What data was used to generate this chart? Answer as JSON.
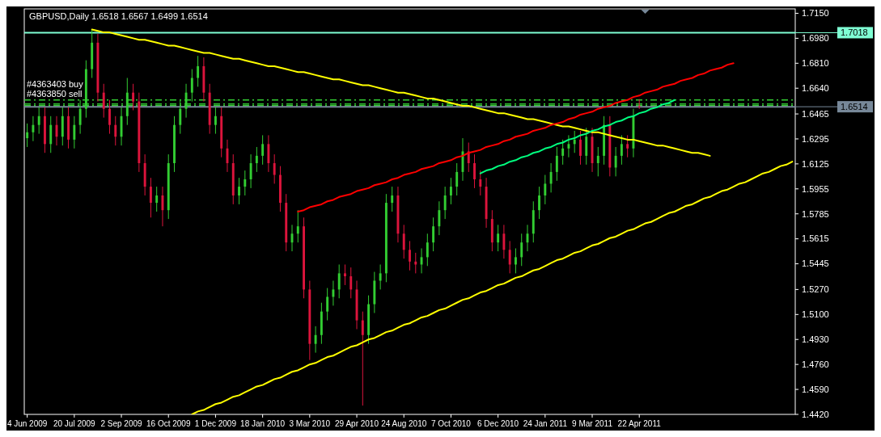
{
  "chart_data": {
    "type": "candlestick",
    "title": "GBPUSD,Daily  1.6518 1.6567 1.6499 1.6514",
    "categories": [
      "4 Jun 2009",
      null,
      null,
      null,
      null,
      null,
      null,
      null,
      "20 Jul 2009",
      null,
      null,
      null,
      null,
      null,
      null,
      null,
      "2 Sep 2009",
      null,
      null,
      null,
      null,
      null,
      null,
      null,
      "16 Oct 2009",
      null,
      null,
      null,
      null,
      null,
      null,
      null,
      "1 Dec 2009",
      null,
      null,
      null,
      null,
      null,
      null,
      null,
      "18 Jan 2010",
      null,
      null,
      null,
      null,
      null,
      null,
      null,
      "3 Mar 2010",
      null,
      null,
      null,
      null,
      null,
      null,
      null,
      "29 Apr 2010",
      null,
      null,
      null,
      null,
      null,
      null,
      null,
      "24 Aug 2010",
      null,
      null,
      null,
      null,
      null,
      null,
      null,
      "7 Oct 2010",
      null,
      null,
      null,
      null,
      null,
      null,
      null,
      "6 Dec 2010",
      null,
      null,
      null,
      null,
      null,
      null,
      null,
      "24 Jan 2011",
      null,
      null,
      null,
      null,
      null,
      null,
      null,
      "9 Mar 2011",
      null,
      null,
      null,
      null,
      null,
      null,
      null,
      "22 Apr 2011",
      null,
      null,
      null,
      null,
      null,
      null,
      null,
      null,
      null,
      null,
      null,
      null,
      null,
      null,
      null,
      null,
      null,
      null,
      null,
      null,
      null,
      null,
      null,
      null,
      null,
      null
    ],
    "ohlc": [
      [
        1.63,
        1.64,
        1.624,
        1.634
      ],
      [
        1.634,
        1.645,
        1.628,
        1.639
      ],
      [
        1.639,
        1.651,
        1.633,
        1.645
      ],
      [
        1.645,
        1.651,
        1.62,
        1.626
      ],
      [
        1.626,
        1.645,
        1.62,
        1.639
      ],
      [
        1.639,
        1.645,
        1.625,
        1.631
      ],
      [
        1.631,
        1.651,
        1.625,
        1.645
      ],
      [
        1.645,
        1.651,
        1.623,
        1.629
      ],
      [
        1.629,
        1.645,
        1.623,
        1.639
      ],
      [
        1.639,
        1.656,
        1.633,
        1.65
      ],
      [
        1.65,
        1.683,
        1.644,
        1.677
      ],
      [
        1.677,
        1.704,
        1.671,
        1.695
      ],
      [
        1.695,
        1.701,
        1.655,
        1.661
      ],
      [
        1.661,
        1.667,
        1.644,
        1.65
      ],
      [
        1.65,
        1.656,
        1.633,
        1.639
      ],
      [
        1.639,
        1.645,
        1.625,
        1.631
      ],
      [
        1.631,
        1.651,
        1.625,
        1.645
      ],
      [
        1.645,
        1.671,
        1.639,
        1.661
      ],
      [
        1.661,
        1.667,
        1.649,
        1.655
      ],
      [
        1.655,
        1.661,
        1.607,
        1.613
      ],
      [
        1.613,
        1.619,
        1.591,
        1.597
      ],
      [
        1.597,
        1.603,
        1.576,
        1.586
      ],
      [
        1.586,
        1.597,
        1.58,
        1.591
      ],
      [
        1.591,
        1.597,
        1.57,
        1.581
      ],
      [
        1.581,
        1.619,
        1.575,
        1.613
      ],
      [
        1.613,
        1.645,
        1.607,
        1.639
      ],
      [
        1.639,
        1.656,
        1.633,
        1.65
      ],
      [
        1.65,
        1.667,
        1.644,
        1.661
      ],
      [
        1.661,
        1.677,
        1.655,
        1.671
      ],
      [
        1.671,
        1.686,
        1.665,
        1.679
      ],
      [
        1.679,
        1.685,
        1.655,
        1.661
      ],
      [
        1.661,
        1.667,
        1.633,
        1.639
      ],
      [
        1.639,
        1.651,
        1.633,
        1.645
      ],
      [
        1.645,
        1.651,
        1.617,
        1.623
      ],
      [
        1.623,
        1.629,
        1.607,
        1.613
      ],
      [
        1.613,
        1.619,
        1.585,
        1.591
      ],
      [
        1.591,
        1.603,
        1.585,
        1.597
      ],
      [
        1.597,
        1.608,
        1.591,
        1.602
      ],
      [
        1.602,
        1.619,
        1.596,
        1.613
      ],
      [
        1.613,
        1.624,
        1.607,
        1.618
      ],
      [
        1.618,
        1.632,
        1.612,
        1.626
      ],
      [
        1.626,
        1.632,
        1.607,
        1.613
      ],
      [
        1.613,
        1.619,
        1.599,
        1.605
      ],
      [
        1.605,
        1.611,
        1.58,
        1.586
      ],
      [
        1.586,
        1.592,
        1.553,
        1.559
      ],
      [
        1.559,
        1.571,
        1.553,
        1.565
      ],
      [
        1.565,
        1.581,
        1.559,
        1.57
      ],
      [
        1.57,
        1.576,
        1.521,
        1.527
      ],
      [
        1.527,
        1.533,
        1.479,
        1.49
      ],
      [
        1.49,
        1.502,
        1.484,
        1.496
      ],
      [
        1.496,
        1.518,
        1.49,
        1.512
      ],
      [
        1.512,
        1.528,
        1.506,
        1.522
      ],
      [
        1.522,
        1.533,
        1.516,
        1.527
      ],
      [
        1.527,
        1.544,
        1.521,
        1.538
      ],
      [
        1.538,
        1.544,
        1.53,
        1.536
      ],
      [
        1.536,
        1.542,
        1.521,
        1.527
      ],
      [
        1.527,
        1.533,
        1.5,
        1.506
      ],
      [
        1.506,
        1.512,
        1.448,
        1.496
      ],
      [
        1.496,
        1.523,
        1.49,
        1.517
      ],
      [
        1.517,
        1.539,
        1.511,
        1.533
      ],
      [
        1.533,
        1.544,
        1.527,
        1.538
      ],
      [
        1.538,
        1.592,
        1.532,
        1.586
      ],
      [
        1.586,
        1.597,
        1.58,
        1.591
      ],
      [
        1.591,
        1.597,
        1.559,
        1.565
      ],
      [
        1.565,
        1.571,
        1.548,
        1.554
      ],
      [
        1.554,
        1.56,
        1.54,
        1.546
      ],
      [
        1.546,
        1.552,
        1.538,
        1.544
      ],
      [
        1.544,
        1.555,
        1.538,
        1.549
      ],
      [
        1.549,
        1.565,
        1.543,
        1.559
      ],
      [
        1.559,
        1.576,
        1.553,
        1.57
      ],
      [
        1.57,
        1.587,
        1.564,
        1.581
      ],
      [
        1.581,
        1.597,
        1.575,
        1.591
      ],
      [
        1.591,
        1.603,
        1.585,
        1.597
      ],
      [
        1.597,
        1.613,
        1.591,
        1.607
      ],
      [
        1.607,
        1.63,
        1.601,
        1.621
      ],
      [
        1.621,
        1.627,
        1.607,
        1.613
      ],
      [
        1.613,
        1.619,
        1.596,
        1.602
      ],
      [
        1.602,
        1.608,
        1.591,
        1.597
      ],
      [
        1.597,
        1.603,
        1.569,
        1.575
      ],
      [
        1.575,
        1.581,
        1.553,
        1.559
      ],
      [
        1.559,
        1.571,
        1.553,
        1.565
      ],
      [
        1.565,
        1.571,
        1.548,
        1.554
      ],
      [
        1.554,
        1.56,
        1.538,
        1.544
      ],
      [
        1.544,
        1.555,
        1.538,
        1.549
      ],
      [
        1.549,
        1.565,
        1.543,
        1.559
      ],
      [
        1.559,
        1.571,
        1.553,
        1.565
      ],
      [
        1.565,
        1.587,
        1.559,
        1.581
      ],
      [
        1.581,
        1.597,
        1.575,
        1.591
      ],
      [
        1.591,
        1.605,
        1.585,
        1.599
      ],
      [
        1.599,
        1.613,
        1.593,
        1.607
      ],
      [
        1.607,
        1.624,
        1.601,
        1.618
      ],
      [
        1.618,
        1.629,
        1.612,
        1.623
      ],
      [
        1.623,
        1.632,
        1.617,
        1.626
      ],
      [
        1.626,
        1.635,
        1.62,
        1.629
      ],
      [
        1.629,
        1.635,
        1.612,
        1.618
      ],
      [
        1.618,
        1.637,
        1.612,
        1.631
      ],
      [
        1.631,
        1.637,
        1.607,
        1.613
      ],
      [
        1.613,
        1.624,
        1.604,
        1.618
      ],
      [
        1.618,
        1.645,
        1.612,
        1.639
      ],
      [
        1.639,
        1.645,
        1.604,
        1.61
      ],
      [
        1.61,
        1.624,
        1.604,
        1.618
      ],
      [
        1.618,
        1.632,
        1.612,
        1.626
      ],
      [
        1.626,
        1.632,
        1.617,
        1.623
      ],
      [
        1.623,
        1.65,
        1.617,
        1.645
      ],
      [
        1.6518,
        1.6567,
        1.6499,
        1.6514
      ],
      null,
      null,
      null,
      null,
      null,
      null,
      null,
      null,
      null,
      null,
      null,
      null,
      null,
      null,
      null,
      null,
      null,
      null,
      null,
      null,
      null,
      null,
      null,
      null,
      null,
      null
    ],
    "colors": [
      "#32cd32",
      "#32cd32",
      "#32cd32",
      "#dc143c",
      "#32cd32",
      "#dc143c",
      "#32cd32",
      "#dc143c",
      "#32cd32",
      "#32cd32",
      "#32cd32",
      "#32cd32",
      "#dc143c",
      "#dc143c",
      "#dc143c",
      "#dc143c",
      "#32cd32",
      "#32cd32",
      "#dc143c",
      "#dc143c",
      "#dc143c",
      "#dc143c",
      "#32cd32",
      "#dc143c",
      "#32cd32",
      "#32cd32",
      "#32cd32",
      "#32cd32",
      "#32cd32",
      "#32cd32",
      "#dc143c",
      "#dc143c",
      "#32cd32",
      "#dc143c",
      "#dc143c",
      "#dc143c",
      "#32cd32",
      "#32cd32",
      "#32cd32",
      "#32cd32",
      "#32cd32",
      "#dc143c",
      "#dc143c",
      "#dc143c",
      "#dc143c",
      "#32cd32",
      "#32cd32",
      "#dc143c",
      "#dc143c",
      "#32cd32",
      "#32cd32",
      "#32cd32",
      "#32cd32",
      "#32cd32",
      "#dc143c",
      "#dc143c",
      "#dc143c",
      "#dc143c",
      "#32cd32",
      "#32cd32",
      "#32cd32",
      "#32cd32",
      "#32cd32",
      "#dc143c",
      "#dc143c",
      "#dc143c",
      "#dc143c",
      "#32cd32",
      "#32cd32",
      "#32cd32",
      "#32cd32",
      "#32cd32",
      "#32cd32",
      "#32cd32",
      "#32cd32",
      "#dc143c",
      "#dc143c",
      "#dc143c",
      "#dc143c",
      "#dc143c",
      "#32cd32",
      "#dc143c",
      "#dc143c",
      "#32cd32",
      "#32cd32",
      "#32cd32",
      "#32cd32",
      "#32cd32",
      "#32cd32",
      "#32cd32",
      "#32cd32",
      "#32cd32",
      "#32cd32",
      "#32cd32",
      "#dc143c",
      "#32cd32",
      "#dc143c",
      "#32cd32",
      "#32cd32",
      "#dc143c",
      "#32cd32",
      "#32cd32",
      "#dc143c",
      "#32cd32",
      "#dc143c",
      null,
      null,
      null,
      null,
      null,
      null,
      null,
      null,
      null,
      null,
      null,
      null,
      null,
      null,
      null,
      null,
      null,
      null,
      null,
      null,
      null,
      null,
      null,
      null,
      null,
      null
    ],
    "series": [
      {
        "type": "line",
        "color": "#ffff00",
        "values": [
          null,
          null,
          null,
          null,
          null,
          null,
          null,
          null,
          null,
          null,
          null,
          1.704,
          1.703,
          1.702,
          1.702,
          1.701,
          1.7,
          1.699,
          1.698,
          1.697,
          1.697,
          1.696,
          1.695,
          1.694,
          1.693,
          1.693,
          1.692,
          1.691,
          1.69,
          1.689,
          1.688,
          1.688,
          1.687,
          1.686,
          1.685,
          1.684,
          1.684,
          1.683,
          1.682,
          1.681,
          1.68,
          1.679,
          1.679,
          1.678,
          1.677,
          1.676,
          1.675,
          1.675,
          1.674,
          1.673,
          1.672,
          1.671,
          1.67,
          1.67,
          1.669,
          1.668,
          1.667,
          1.666,
          1.666,
          1.665,
          1.664,
          1.663,
          1.662,
          1.661,
          1.661,
          1.66,
          1.659,
          1.658,
          1.657,
          1.657,
          1.656,
          1.655,
          1.654,
          1.653,
          1.652,
          1.652,
          1.651,
          1.65,
          1.649,
          1.648,
          1.647,
          1.647,
          1.646,
          1.645,
          1.644,
          1.643,
          1.643,
          1.642,
          1.641,
          1.64,
          1.639,
          1.638,
          1.638,
          1.637,
          1.636,
          1.635,
          1.634,
          1.634,
          1.633,
          1.632,
          1.631,
          1.63,
          1.629,
          1.629,
          1.628,
          1.627,
          1.626,
          1.625,
          1.625,
          1.624,
          1.623,
          1.622,
          1.621,
          1.62,
          1.62,
          1.619,
          1.618,
          null,
          null,
          null,
          null,
          null,
          null,
          null,
          null,
          null,
          null,
          null,
          null,
          null,
          null
        ]
      },
      {
        "type": "line",
        "color": "#ff0000",
        "values": [
          null,
          null,
          null,
          null,
          null,
          null,
          null,
          null,
          null,
          null,
          null,
          null,
          null,
          null,
          null,
          null,
          null,
          null,
          null,
          null,
          null,
          null,
          null,
          null,
          null,
          null,
          null,
          null,
          null,
          null,
          null,
          null,
          null,
          null,
          null,
          null,
          null,
          null,
          null,
          null,
          null,
          null,
          null,
          null,
          null,
          null,
          1.58,
          1.581,
          1.583,
          1.584,
          1.585,
          1.587,
          1.588,
          1.59,
          1.591,
          1.592,
          1.594,
          1.595,
          1.596,
          1.598,
          1.599,
          1.6,
          1.602,
          1.603,
          1.605,
          1.606,
          1.607,
          1.609,
          1.61,
          1.611,
          1.613,
          1.614,
          1.615,
          1.617,
          1.618,
          1.62,
          1.621,
          1.622,
          1.624,
          1.625,
          1.626,
          1.628,
          1.629,
          1.631,
          1.632,
          1.633,
          1.635,
          1.636,
          1.637,
          1.639,
          1.64,
          1.641,
          1.643,
          1.644,
          1.646,
          1.647,
          1.648,
          1.65,
          1.651,
          1.652,
          1.654,
          1.655,
          1.656,
          1.658,
          1.659,
          1.661,
          1.662,
          1.663,
          1.665,
          1.666,
          1.667,
          1.669,
          1.67,
          1.671,
          1.673,
          1.674,
          1.676,
          1.677,
          1.678,
          1.68,
          1.681,
          null,
          null,
          null,
          null,
          null,
          null,
          null,
          null,
          null,
          null
        ]
      },
      {
        "type": "line",
        "color": "#00ff7f",
        "values": [
          null,
          null,
          null,
          null,
          null,
          null,
          null,
          null,
          null,
          null,
          null,
          null,
          null,
          null,
          null,
          null,
          null,
          null,
          null,
          null,
          null,
          null,
          null,
          null,
          null,
          null,
          null,
          null,
          null,
          null,
          null,
          null,
          null,
          null,
          null,
          null,
          null,
          null,
          null,
          null,
          null,
          null,
          null,
          null,
          null,
          null,
          null,
          null,
          null,
          null,
          null,
          null,
          null,
          null,
          null,
          null,
          null,
          null,
          null,
          null,
          null,
          null,
          null,
          null,
          null,
          null,
          null,
          null,
          null,
          null,
          null,
          null,
          null,
          null,
          null,
          null,
          null,
          1.606,
          1.608,
          1.609,
          1.611,
          1.612,
          1.614,
          1.615,
          1.617,
          1.618,
          1.62,
          1.621,
          1.623,
          1.624,
          1.626,
          1.627,
          1.629,
          1.63,
          1.632,
          1.633,
          1.635,
          1.636,
          1.638,
          1.639,
          1.641,
          1.642,
          1.644,
          1.645,
          1.647,
          1.648,
          1.65,
          1.651,
          1.653,
          1.654,
          1.656,
          null,
          null,
          null,
          null,
          null,
          null,
          null,
          null,
          null,
          null,
          null,
          null,
          null,
          null,
          null,
          null,
          null,
          null,
          null,
          null
        ]
      },
      {
        "type": "line",
        "color": "#ffff00",
        "values": [
          null,
          null,
          null,
          null,
          null,
          null,
          null,
          null,
          null,
          null,
          null,
          null,
          null,
          null,
          null,
          null,
          null,
          null,
          null,
          null,
          null,
          null,
          null,
          null,
          null,
          null,
          null,
          null,
          1.442,
          1.444,
          1.445,
          1.447,
          1.449,
          1.45,
          1.452,
          1.454,
          1.455,
          1.457,
          1.459,
          1.461,
          1.462,
          1.464,
          1.466,
          1.467,
          1.469,
          1.471,
          1.472,
          1.474,
          1.476,
          1.477,
          1.479,
          1.481,
          1.482,
          1.484,
          1.486,
          1.488,
          1.489,
          1.491,
          1.493,
          1.494,
          1.496,
          1.498,
          1.499,
          1.501,
          1.503,
          1.504,
          1.506,
          1.508,
          1.509,
          1.511,
          1.513,
          1.514,
          1.516,
          1.518,
          1.52,
          1.521,
          1.523,
          1.525,
          1.526,
          1.528,
          1.53,
          1.531,
          1.533,
          1.535,
          1.536,
          1.538,
          1.54,
          1.541,
          1.543,
          1.545,
          1.547,
          1.548,
          1.55,
          1.552,
          1.553,
          1.555,
          1.557,
          1.558,
          1.56,
          1.562,
          1.563,
          1.565,
          1.567,
          1.568,
          1.57,
          1.572,
          1.573,
          1.575,
          1.577,
          1.579,
          1.58,
          1.582,
          1.584,
          1.585,
          1.587,
          1.589,
          1.59,
          1.592,
          1.594,
          1.595,
          1.597,
          1.599,
          1.6,
          1.602,
          1.604,
          1.606,
          1.607,
          1.609,
          1.611,
          1.612,
          1.614
        ]
      }
    ],
    "ref_lines": [
      {
        "axis": "y",
        "value": 1.7018,
        "label": "1.7018",
        "color": "#7fffd4"
      },
      {
        "axis": "y",
        "value": 1.656,
        "label": "#4363403 buy",
        "color": "#32cd32",
        "line_style": "dashed"
      },
      {
        "axis": "y",
        "value": 1.6532,
        "label": "#4363850 sell",
        "color": "#32cd32",
        "line_style": "dashed"
      },
      {
        "axis": "y",
        "value": 1.6522,
        "color": "#32cd32",
        "line_style": "dashed"
      },
      {
        "axis": "y",
        "value": 1.6514,
        "label": "1.6514",
        "color": "#778899"
      }
    ],
    "ylim": [
      1.442,
      1.718
    ],
    "yticks": [
      {
        "value": 1.715,
        "label": "1.7150"
      },
      {
        "value": 1.698,
        "label": "1.6980"
      },
      {
        "value": 1.681,
        "label": "1.6810"
      },
      {
        "value": 1.664,
        "label": "1.6640"
      },
      {
        "value": 1.6465,
        "label": "1.6465"
      },
      {
        "value": 1.6295,
        "label": "1.6295"
      },
      {
        "value": 1.6125,
        "label": "1.6125"
      },
      {
        "value": 1.5955,
        "label": "1.5955"
      },
      {
        "value": 1.5785,
        "label": "1.5785"
      },
      {
        "value": 1.5615,
        "label": "1.5615"
      },
      {
        "value": 1.5445,
        "label": "1.5445"
      },
      {
        "value": 1.527,
        "label": "1.5270"
      },
      {
        "value": 1.51,
        "label": "1.5100"
      },
      {
        "value": 1.493,
        "label": "1.4930"
      },
      {
        "value": 1.476,
        "label": "1.4760"
      },
      {
        "value": 1.459,
        "label": "1.4590"
      },
      {
        "value": 1.442,
        "label": "1.4420"
      }
    ]
  }
}
